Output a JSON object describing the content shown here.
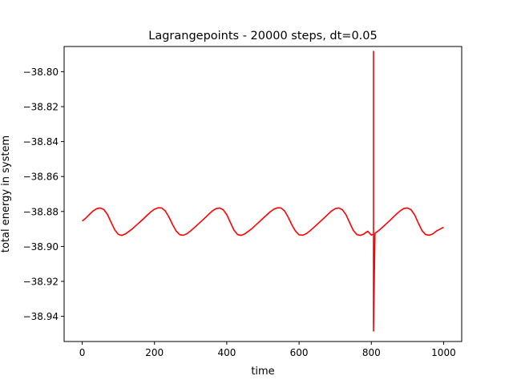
{
  "chart_data": {
    "type": "line",
    "title": "Lagrangepoints - 20000 steps, dt=0.05",
    "xlabel": "time",
    "ylabel": "total energy in system",
    "xlim": [
      -50,
      1050
    ],
    "ylim": [
      -38.9544,
      -38.7856
    ],
    "x_ticks": [
      0,
      200,
      400,
      600,
      800,
      1000
    ],
    "x_tick_labels": [
      "0",
      "200",
      "400",
      "600",
      "800",
      "1000"
    ],
    "y_ticks": [
      -38.94,
      -38.92,
      -38.9,
      -38.88,
      -38.86,
      -38.84,
      -38.82,
      -38.8
    ],
    "y_tick_labels": [
      "−38.94",
      "−38.92",
      "−38.90",
      "−38.88",
      "−38.86",
      "−38.84",
      "−38.82",
      "−38.80"
    ],
    "grid": false,
    "series": [
      {
        "color": "#ff0000",
        "x": [
          0,
          10,
          20,
          30,
          40,
          50,
          60,
          70,
          80,
          90,
          100,
          110,
          120,
          130,
          140,
          150,
          160,
          170,
          180,
          190,
          200,
          210,
          220,
          230,
          240,
          250,
          260,
          270,
          280,
          290,
          300,
          310,
          320,
          330,
          340,
          350,
          360,
          370,
          380,
          390,
          400,
          410,
          420,
          430,
          440,
          450,
          460,
          470,
          480,
          490,
          500,
          510,
          520,
          530,
          540,
          550,
          560,
          570,
          580,
          590,
          600,
          610,
          620,
          630,
          640,
          650,
          660,
          670,
          680,
          690,
          700,
          710,
          720,
          730,
          740,
          750,
          760,
          770,
          780,
          790,
          800,
          806,
          806,
          806,
          810,
          820,
          830,
          840,
          850,
          860,
          870,
          880,
          890,
          900,
          910,
          920,
          930,
          940,
          950,
          960,
          970,
          980,
          990,
          1000
        ],
        "y": [
          -38.8855,
          -38.8838,
          -38.8817,
          -38.8797,
          -38.8784,
          -38.878,
          -38.8789,
          -38.8817,
          -38.8862,
          -38.8905,
          -38.8931,
          -38.8937,
          -38.8928,
          -38.8913,
          -38.8897,
          -38.8878,
          -38.886,
          -38.8841,
          -38.8821,
          -38.8802,
          -38.8787,
          -38.8779,
          -38.878,
          -38.8797,
          -38.8832,
          -38.8875,
          -38.8912,
          -38.8933,
          -38.8936,
          -38.8927,
          -38.8911,
          -38.8893,
          -38.8874,
          -38.8855,
          -38.8836,
          -38.8816,
          -38.8797,
          -38.8784,
          -38.878,
          -38.879,
          -38.8818,
          -38.8863,
          -38.8907,
          -38.8932,
          -38.8937,
          -38.8928,
          -38.8913,
          -38.8897,
          -38.8878,
          -38.8859,
          -38.884,
          -38.8821,
          -38.8802,
          -38.8787,
          -38.8779,
          -38.878,
          -38.8797,
          -38.8833,
          -38.8876,
          -38.8912,
          -38.8934,
          -38.8936,
          -38.8927,
          -38.8911,
          -38.8893,
          -38.8874,
          -38.8855,
          -38.8836,
          -38.8816,
          -38.8797,
          -38.8784,
          -38.878,
          -38.879,
          -38.8819,
          -38.8864,
          -38.8908,
          -38.8932,
          -38.8937,
          -38.8928,
          -38.8913,
          -38.8935,
          -38.893,
          -38.7884,
          -38.9484,
          -38.8925,
          -38.891,
          -38.8892,
          -38.8873,
          -38.8854,
          -38.8834,
          -38.8814,
          -38.8796,
          -38.8783,
          -38.878,
          -38.879,
          -38.882,
          -38.8866,
          -38.8909,
          -38.8932,
          -38.8936,
          -38.8928,
          -38.8912,
          -38.8901,
          -38.889
        ]
      }
    ]
  }
}
